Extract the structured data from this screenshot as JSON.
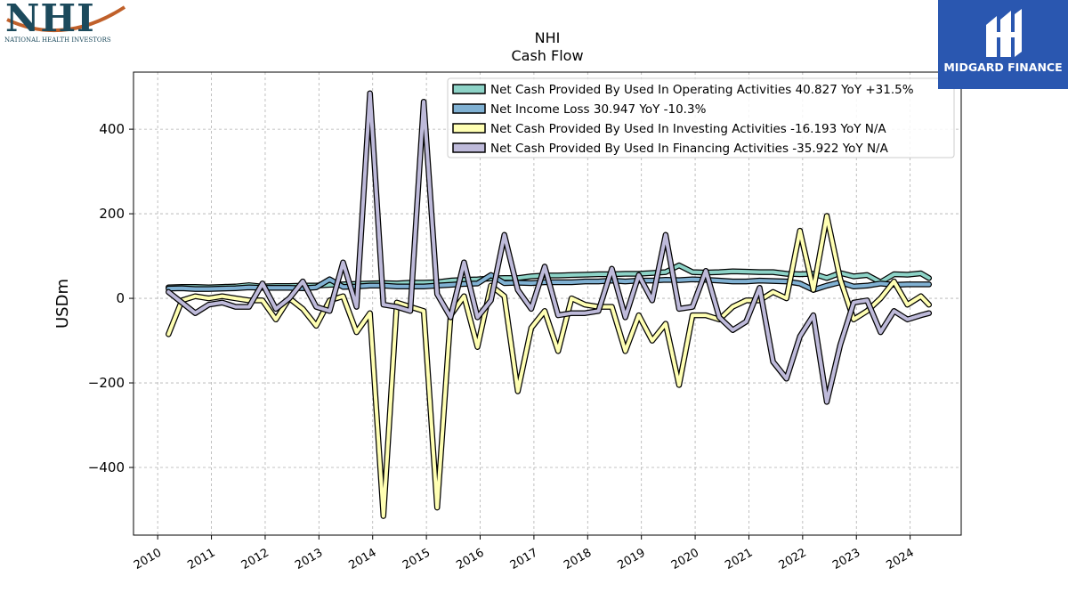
{
  "logos": {
    "left": {
      "mark": "NHI",
      "tagline": "NATIONAL HEALTH INVESTORS",
      "arc_color": "#c0602a",
      "color": "#1c4a5c"
    },
    "right": {
      "name": "MIDGARD FINANCE",
      "background": "#2a57b0"
    }
  },
  "chart_data": {
    "type": "line",
    "title": "NHI",
    "subtitle": "Cash Flow",
    "xlabel": "",
    "ylabel": "USDm",
    "xlim": [
      2009.55,
      2024.95
    ],
    "ylim": [
      -560,
      535
    ],
    "xticks": [
      2010,
      2011,
      2012,
      2013,
      2014,
      2015,
      2016,
      2017,
      2018,
      2019,
      2020,
      2021,
      2022,
      2023,
      2024
    ],
    "yticks": [
      -400,
      -200,
      0,
      200,
      400
    ],
    "ytick_labels": [
      "−400",
      "−200",
      "0",
      "200",
      "400"
    ],
    "grid": true,
    "legend_position": "top-right",
    "x": [
      2010.2,
      2010.45,
      2010.7,
      2010.95,
      2011.2,
      2011.45,
      2011.7,
      2011.95,
      2012.2,
      2012.45,
      2012.7,
      2012.95,
      2013.2,
      2013.45,
      2013.7,
      2013.95,
      2014.2,
      2014.45,
      2014.7,
      2014.95,
      2015.2,
      2015.45,
      2015.7,
      2015.95,
      2016.2,
      2016.45,
      2016.7,
      2016.95,
      2017.2,
      2017.45,
      2017.7,
      2017.95,
      2018.2,
      2018.45,
      2018.7,
      2018.95,
      2019.2,
      2019.45,
      2019.7,
      2019.95,
      2020.2,
      2020.45,
      2020.7,
      2020.95,
      2021.2,
      2021.45,
      2021.7,
      2021.95,
      2022.2,
      2022.45,
      2022.7,
      2022.95,
      2023.2,
      2023.45,
      2023.7,
      2023.95,
      2024.2,
      2024.35
    ],
    "series": [
      {
        "name": "Net Cash Provided By Used In Operating Activities  40.827 YoY +31.5%",
        "color": "#8dd3c7",
        "values": [
          26,
          27,
          27,
          26,
          27,
          28,
          31,
          28,
          29,
          29,
          30,
          30,
          32,
          33,
          34,
          35,
          36,
          35,
          37,
          37,
          38,
          42,
          44,
          45,
          47,
          48,
          48,
          52,
          54,
          54,
          55,
          56,
          57,
          57,
          58,
          58,
          60,
          62,
          78,
          62,
          61,
          62,
          64,
          63,
          62,
          62,
          58,
          57,
          58,
          48,
          60,
          52,
          55,
          38,
          57,
          56,
          59,
          48
        ]
      },
      {
        "name": "Net Income Loss  30.947 YoY -10.3%",
        "color": "#80b1d3",
        "values": [
          23,
          24,
          22,
          22,
          23,
          24,
          26,
          25,
          25,
          25,
          24,
          26,
          45,
          27,
          28,
          30,
          30,
          28,
          28,
          28,
          30,
          32,
          34,
          35,
          55,
          36,
          37,
          36,
          38,
          38,
          38,
          40,
          40,
          42,
          40,
          42,
          42,
          44,
          43,
          45,
          44,
          42,
          40,
          40,
          42,
          41,
          40,
          35,
          20,
          30,
          38,
          28,
          30,
          35,
          32,
          33,
          33,
          33
        ]
      },
      {
        "name": "Net Cash Provided By Used In Investing Activities  -16.193 YoY N/A",
        "color": "#ffffb3",
        "values": [
          -85,
          -5,
          5,
          0,
          5,
          0,
          -5,
          -5,
          -50,
          0,
          -25,
          -65,
          -5,
          5,
          -80,
          -35,
          -515,
          -10,
          -20,
          -30,
          -495,
          -40,
          5,
          -115,
          30,
          5,
          -220,
          -70,
          -30,
          -125,
          0,
          -15,
          -20,
          -20,
          -125,
          -40,
          -100,
          -60,
          -205,
          -40,
          -40,
          -50,
          -20,
          -5,
          -5,
          15,
          0,
          160,
          20,
          195,
          45,
          -50,
          -30,
          0,
          40,
          -15,
          5,
          -15
        ]
      },
      {
        "name": "Net Cash Provided By Used In Financing Activities  -35.922 YoY N/A",
        "color": "#bebada",
        "values": [
          15,
          -10,
          -35,
          -15,
          -10,
          -20,
          -20,
          35,
          -25,
          0,
          40,
          -20,
          -30,
          85,
          -20,
          485,
          -15,
          -20,
          -30,
          465,
          10,
          -45,
          85,
          -45,
          -5,
          150,
          20,
          -25,
          75,
          -40,
          -35,
          -35,
          -30,
          70,
          -45,
          55,
          -5,
          150,
          -25,
          -20,
          65,
          -45,
          -75,
          -55,
          25,
          -150,
          -190,
          -90,
          -40,
          -245,
          -110,
          -10,
          -5,
          -80,
          -30,
          -50,
          -40,
          -35
        ]
      }
    ]
  }
}
